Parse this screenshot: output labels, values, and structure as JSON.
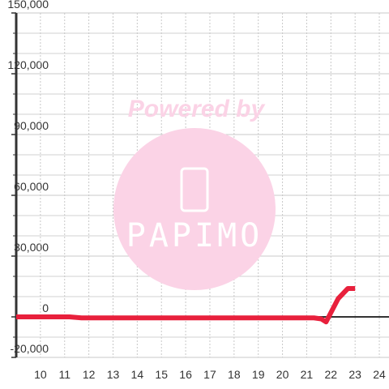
{
  "chart_data": {
    "type": "line",
    "x": [
      9,
      11.2,
      11.7,
      21.3,
      21.6,
      21.8,
      22.3,
      22.7,
      23
    ],
    "series": [
      {
        "color": "#e8203c",
        "values": [
          0,
          0,
          -500,
          -500,
          -1000,
          -2500,
          9000,
          14000,
          14000
        ]
      }
    ],
    "xlim": [
      9,
      24.4
    ],
    "xticks": [
      10,
      11,
      12,
      13,
      14,
      15,
      16,
      17,
      18,
      19,
      20,
      21,
      22,
      23,
      24
    ],
    "ylim": [
      -20000,
      150000
    ],
    "yticks": [
      {
        "value": -20000,
        "label": "-20,000"
      },
      0,
      {
        "value": 30000,
        "label": "30,000"
      },
      {
        "value": 60000,
        "label": "60,000"
      },
      {
        "value": 90000,
        "label": "90,000"
      },
      {
        "value": 120000,
        "label": "120,000"
      },
      {
        "value": 150000,
        "label": "150,000"
      }
    ],
    "y_minor_ticks": [
      -10000,
      10000,
      20000,
      40000,
      50000,
      70000,
      80000,
      100000,
      110000,
      130000,
      140000
    ],
    "grid": true
  },
  "watermark": {
    "line1": "Powered by",
    "line2": "PAPIMO"
  }
}
